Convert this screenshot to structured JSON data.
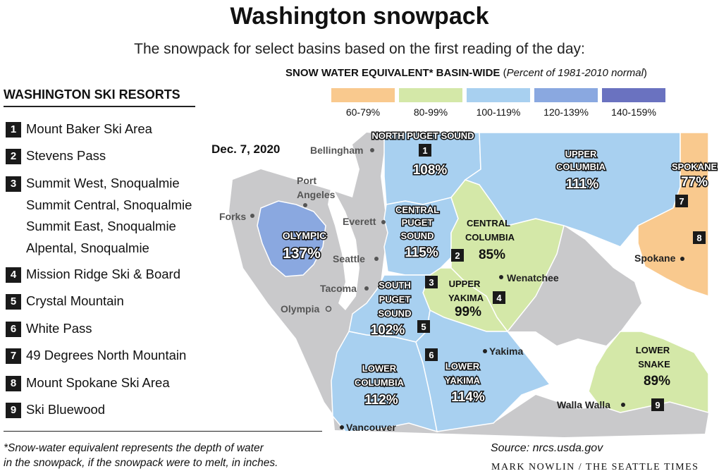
{
  "title": "Washington snowpack",
  "subtitle": "The snowpack for select basins based on the first reading of the day:",
  "legend": {
    "title_bold": "SNOW WATER EQUIVALENT* BASIN-WIDE",
    "title_open": " (",
    "title_italic": "Percent of 1981-2010 normal",
    "title_close": ")",
    "items": [
      {
        "label": "60-79%",
        "color": "#f9c98e"
      },
      {
        "label": "80-99%",
        "color": "#d4e8a8"
      },
      {
        "label": "100-119%",
        "color": "#a8d0f0"
      },
      {
        "label": "120-139%",
        "color": "#8aa8e0"
      },
      {
        "label": "140-159%",
        "color": "#6a72c0"
      }
    ]
  },
  "resorts": {
    "heading": "WASHINGTON SKI RESORTS",
    "items": [
      {
        "num": "1",
        "lines": [
          "Mount Baker Ski Area"
        ]
      },
      {
        "num": "2",
        "lines": [
          "Stevens Pass"
        ]
      },
      {
        "num": "3",
        "lines": [
          "Summit West, Snoqualmie",
          "Summit Central, Snoqualmie",
          "Summit East, Snoqualmie",
          "Alpental, Snoqualmie"
        ]
      },
      {
        "num": "4",
        "lines": [
          "Mission Ridge Ski & Board"
        ]
      },
      {
        "num": "5",
        "lines": [
          "Crystal Mountain"
        ]
      },
      {
        "num": "6",
        "lines": [
          "White Pass"
        ]
      },
      {
        "num": "7",
        "lines": [
          "49 Degrees North Mountain"
        ]
      },
      {
        "num": "8",
        "lines": [
          "Mount Spokane Ski Area"
        ]
      },
      {
        "num": "9",
        "lines": [
          "Ski Bluewood"
        ]
      }
    ]
  },
  "date": "Dec. 7, 2020",
  "basins": [
    {
      "id": "north-puget-sound",
      "name_lines": [
        "NORTH PUGET SOUND"
      ],
      "percent": "108%",
      "color": "#a8d0f0"
    },
    {
      "id": "upper-columbia",
      "name_lines": [
        "UPPER",
        "COLUMBIA"
      ],
      "percent": "111%",
      "color": "#a8d0f0"
    },
    {
      "id": "spokane",
      "name_lines": [
        "SPOKANE"
      ],
      "percent": "77%",
      "color": "#f9c98e"
    },
    {
      "id": "olympic",
      "name_lines": [
        "OLYMPIC"
      ],
      "percent": "137%",
      "color": "#8aa8e0"
    },
    {
      "id": "central-puget-sound",
      "name_lines": [
        "CENTRAL",
        "PUGET",
        "SOUND"
      ],
      "percent": "115%",
      "color": "#a8d0f0"
    },
    {
      "id": "central-columbia",
      "name_lines": [
        "CENTRAL",
        "COLUMBIA"
      ],
      "percent": "85%",
      "color": "#d4e8a8"
    },
    {
      "id": "upper-yakima",
      "name_lines": [
        "UPPER",
        "YAKIMA"
      ],
      "percent": "99%",
      "color": "#d4e8a8"
    },
    {
      "id": "south-puget-sound",
      "name_lines": [
        "SOUTH",
        "PUGET",
        "SOUND"
      ],
      "percent": "102%",
      "color": "#a8d0f0"
    },
    {
      "id": "lower-columbia",
      "name_lines": [
        "LOWER",
        "COLUMBIA"
      ],
      "percent": "112%",
      "color": "#a8d0f0"
    },
    {
      "id": "lower-yakima",
      "name_lines": [
        "LOWER",
        "YAKIMA"
      ],
      "percent": "114%",
      "color": "#a8d0f0"
    },
    {
      "id": "lower-snake",
      "name_lines": [
        "LOWER",
        "SNAKE"
      ],
      "percent": "89%",
      "color": "#d4e8a8"
    }
  ],
  "cities": [
    {
      "id": "bellingham",
      "name": "Bellingham"
    },
    {
      "id": "port-angeles",
      "name_lines": [
        "Port",
        "Angeles"
      ]
    },
    {
      "id": "forks",
      "name": "Forks"
    },
    {
      "id": "everett",
      "name": "Everett"
    },
    {
      "id": "seattle",
      "name": "Seattle"
    },
    {
      "id": "tacoma",
      "name": "Tacoma"
    },
    {
      "id": "olympia",
      "name": "Olympia"
    },
    {
      "id": "wenatchee",
      "name": "Wenatchee"
    },
    {
      "id": "spokane-city",
      "name": "Spokane"
    },
    {
      "id": "yakima",
      "name": "Yakima"
    },
    {
      "id": "walla-walla",
      "name": "Walla Walla"
    },
    {
      "id": "vancouver",
      "name": "Vancouver"
    }
  ],
  "footnote_lines": [
    "*Snow-water equivalent represents the depth of water",
    "in the snowpack, if the snowpack were to melt, in inches."
  ],
  "source": "Source: nrcs.usda.gov",
  "credit": "MARK NOWLIN / THE SEATTLE TIMES"
}
